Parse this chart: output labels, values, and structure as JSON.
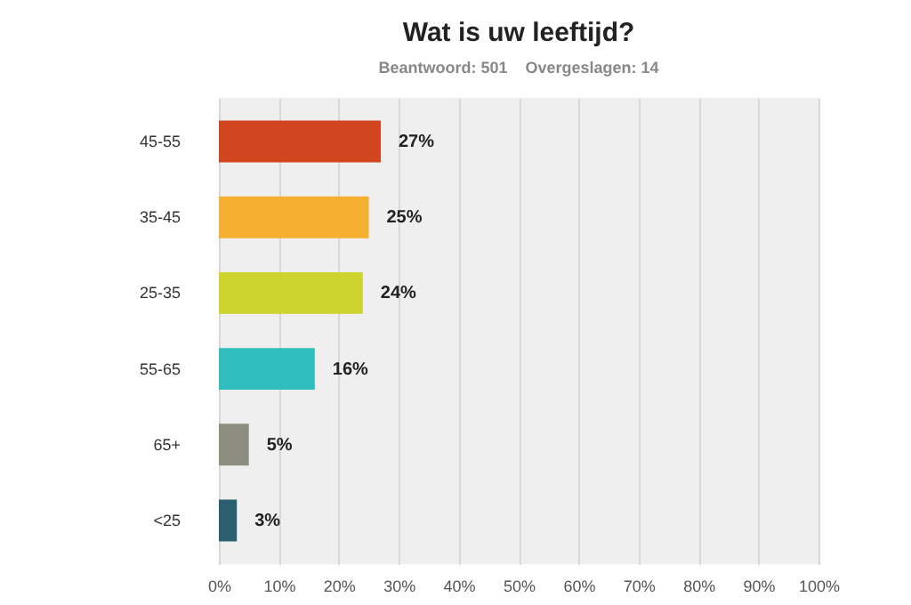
{
  "chart_data": {
    "type": "bar",
    "orientation": "horizontal",
    "title": "Wat is uw leeftijd?",
    "subtitle": "Beantwoord: 501    Overgeslagen: 14",
    "categories": [
      "45-55",
      "35-45",
      "25-35",
      "55-65",
      "65+",
      "<25"
    ],
    "values": [
      27,
      25,
      24,
      16,
      5,
      3
    ],
    "colors": [
      "#d2461f",
      "#f5b031",
      "#cdd42e",
      "#2fbdbd",
      "#8e8e80",
      "#2b5f70"
    ],
    "value_labels": [
      "27%",
      "25%",
      "24%",
      "16%",
      "5%",
      "3%"
    ],
    "xlim": [
      0,
      100
    ],
    "xticks": [
      {
        "value": 0,
        "label": "0%"
      },
      {
        "value": 10,
        "label": "10%"
      },
      {
        "value": 20,
        "label": "20%"
      },
      {
        "value": 30,
        "label": "30%"
      },
      {
        "value": 40,
        "label": "40%"
      },
      {
        "value": 50,
        "label": "50%"
      },
      {
        "value": 60,
        "label": "60%"
      },
      {
        "value": 70,
        "label": "70%"
      },
      {
        "value": 80,
        "label": "80%"
      },
      {
        "value": 90,
        "label": "90%"
      },
      {
        "value": 100,
        "label": "100%"
      }
    ],
    "grid": "x",
    "legend": false
  }
}
